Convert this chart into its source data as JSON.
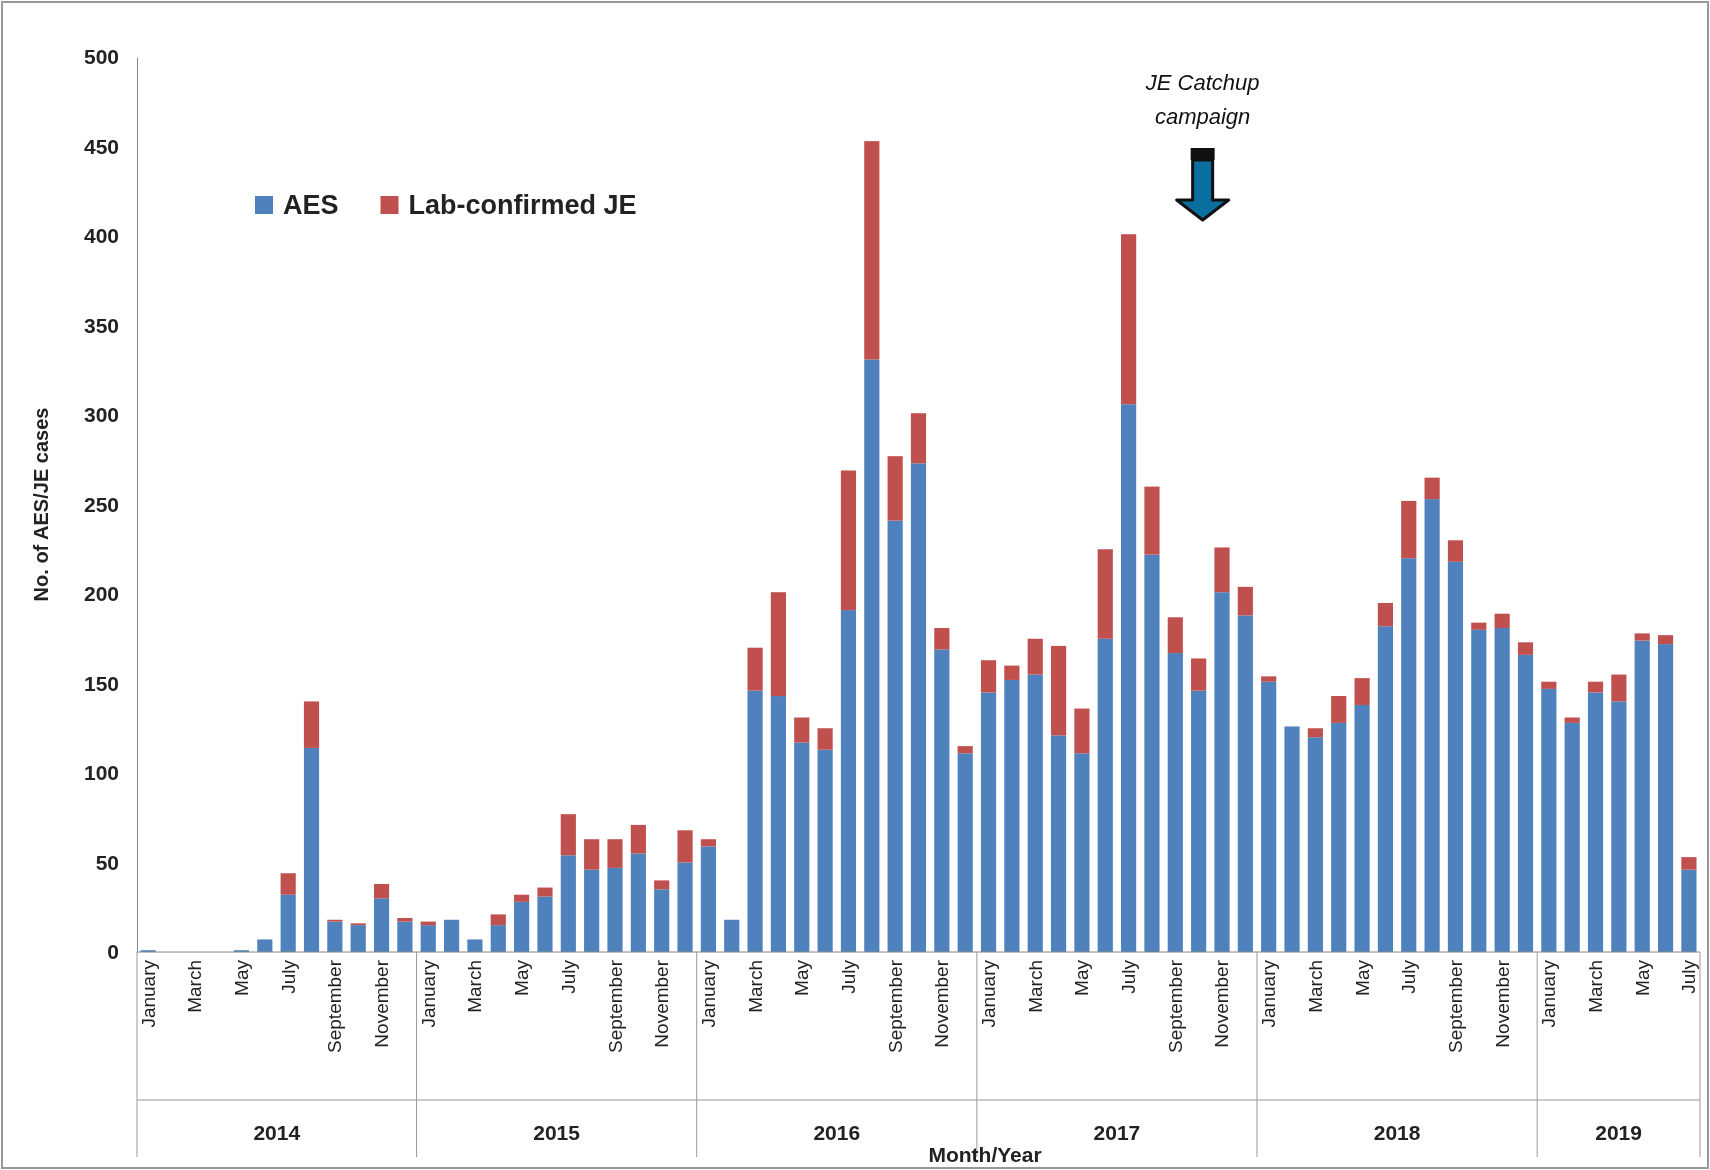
{
  "chart_data": {
    "type": "bar",
    "stacked": true,
    "xlabel": "Month/Year",
    "ylabel": "No. of AES/JE cases",
    "categories": [
      "January",
      null,
      "March",
      null,
      "May",
      null,
      "July",
      null,
      "September",
      null,
      "November",
      null,
      "January",
      null,
      "March",
      null,
      "May",
      null,
      "July",
      null,
      "September",
      null,
      "November",
      null,
      "January",
      null,
      "March",
      null,
      "May",
      null,
      "July",
      null,
      "September",
      null,
      "November",
      null,
      "January",
      null,
      "March",
      null,
      "May",
      null,
      "July",
      null,
      "September",
      null,
      "November",
      null,
      "January",
      null,
      "March",
      null,
      "May",
      null,
      "July",
      null,
      "September",
      null,
      "November",
      null,
      "January",
      null,
      "March",
      null,
      "May",
      null,
      "July"
    ],
    "series": [
      {
        "name": "AES",
        "color": "#4f81bd",
        "values": [
          1,
          0,
          0,
          0,
          1,
          7,
          32,
          114,
          17,
          15,
          30,
          17,
          15,
          18,
          7,
          15,
          28,
          31,
          54,
          46,
          47,
          55,
          35,
          50,
          59,
          18,
          146,
          143,
          117,
          113,
          191,
          331,
          241,
          273,
          169,
          111,
          145,
          152,
          155,
          121,
          111,
          175,
          306,
          222,
          167,
          146,
          201,
          188,
          151,
          126,
          120,
          128,
          138,
          182,
          220,
          253,
          218,
          180,
          181,
          166,
          147,
          128,
          145,
          140,
          174,
          172,
          46
        ]
      },
      {
        "name": "Lab-confirmed JE",
        "color": "#c0504d",
        "values": [
          0,
          0,
          0,
          0,
          0,
          0,
          12,
          26,
          1,
          1,
          8,
          2,
          2,
          0,
          0,
          6,
          4,
          5,
          23,
          17,
          16,
          16,
          5,
          18,
          4,
          0,
          24,
          58,
          14,
          12,
          78,
          122,
          36,
          28,
          12,
          4,
          18,
          8,
          20,
          50,
          25,
          50,
          95,
          38,
          20,
          18,
          25,
          16,
          3,
          0,
          5,
          15,
          15,
          13,
          32,
          12,
          12,
          4,
          8,
          7,
          4,
          3,
          6,
          15,
          4,
          5,
          7
        ]
      }
    ],
    "ylim": [
      0,
      500
    ],
    "yticks": [
      0,
      50,
      100,
      150,
      200,
      250,
      300,
      350,
      400,
      450,
      500
    ],
    "grid": false,
    "legend": "top left",
    "annotations": [
      "JE Catchup campaign",
      "2014",
      "2015",
      "2016",
      "2017",
      "2018",
      "2019"
    ]
  }
}
